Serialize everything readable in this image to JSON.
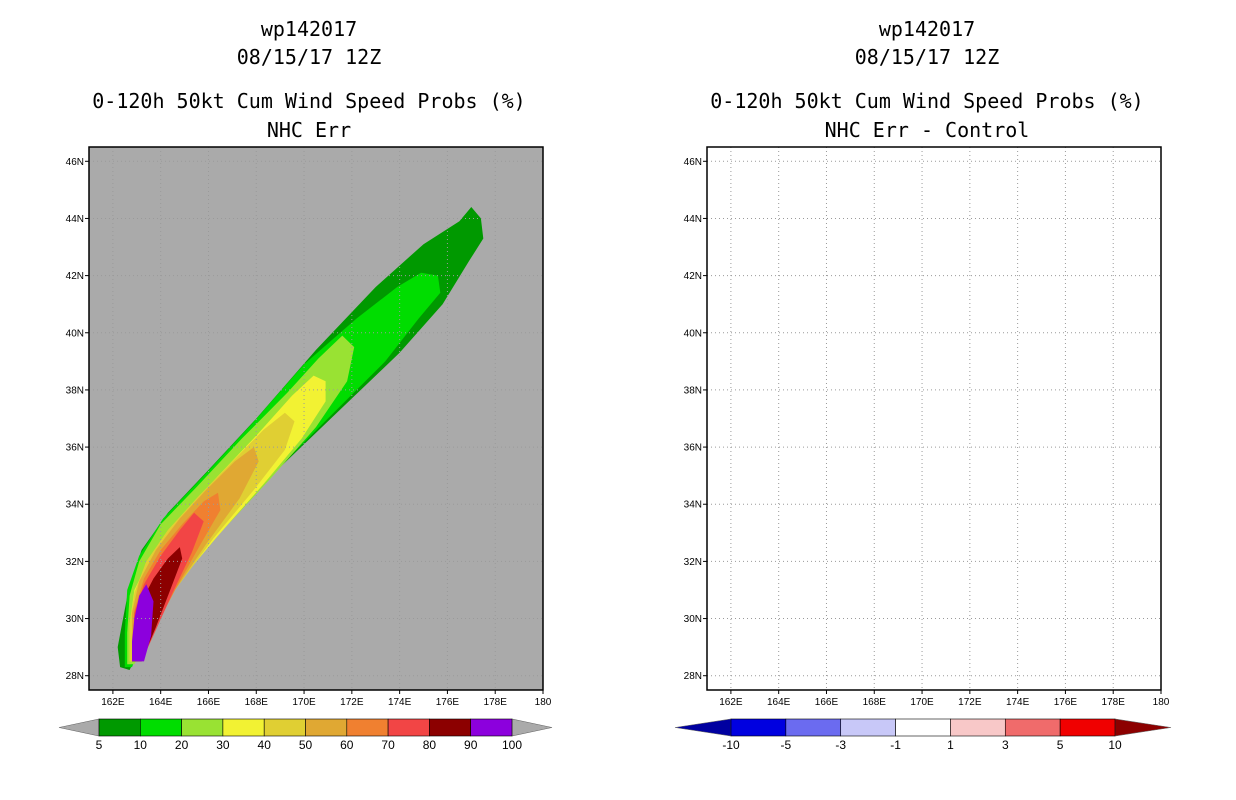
{
  "chart_data": [
    {
      "type": "heatmap",
      "title": "wp142017",
      "subtitle": "08/15/17 12Z",
      "product": "0-120h 50kt Cum Wind Speed Probs (%)",
      "panel_label": "NHC Err",
      "x_ticks": [
        "162E",
        "164E",
        "166E",
        "168E",
        "170E",
        "172E",
        "174E",
        "176E",
        "178E",
        "180"
      ],
      "y_ticks": [
        "28N",
        "30N",
        "32N",
        "34N",
        "36N",
        "38N",
        "40N",
        "42N",
        "44N",
        "46N"
      ],
      "xlim": [
        161,
        180
      ],
      "ylim": [
        27.5,
        46.5
      ],
      "grid": true,
      "background_color": "#aaaaaa",
      "levels": [
        "5",
        "10",
        "20",
        "30",
        "40",
        "50",
        "60",
        "70",
        "80",
        "90",
        "100"
      ],
      "level_values": [
        5,
        10,
        20,
        30,
        40,
        50,
        60,
        70,
        80,
        90,
        100
      ],
      "level_colors": [
        "#009900",
        "#00dd00",
        "#99e233",
        "#f2f233",
        "#e0cf33",
        "#e0a833",
        "#f08030",
        "#f24545",
        "#8c0000",
        "#8c00dd"
      ],
      "contours": [
        {
          "level": 5,
          "points": [
            [
              162.3,
              28.3
            ],
            [
              162.7,
              28.2
            ],
            [
              163.6,
              29.8
            ],
            [
              164.5,
              31.2
            ],
            [
              166.5,
              33.1
            ],
            [
              169.0,
              35.3
            ],
            [
              171.5,
              37.3
            ],
            [
              174.0,
              39.3
            ],
            [
              175.8,
              41.0
            ],
            [
              176.9,
              42.5
            ],
            [
              177.5,
              43.3
            ],
            [
              177.4,
              44.0
            ],
            [
              177.0,
              44.4
            ],
            [
              176.5,
              43.9
            ],
            [
              175.0,
              43.1
            ],
            [
              173.0,
              41.6
            ],
            [
              170.5,
              39.4
            ],
            [
              168.0,
              37.0
            ],
            [
              166.0,
              35.2
            ],
            [
              164.3,
              33.7
            ],
            [
              163.2,
              32.4
            ],
            [
              162.7,
              31.2
            ],
            [
              162.4,
              29.9
            ],
            [
              162.2,
              29.0
            ]
          ]
        },
        {
          "level": 10,
          "points": [
            [
              162.5,
              28.3
            ],
            [
              162.8,
              28.3
            ],
            [
              163.5,
              29.7
            ],
            [
              164.3,
              31.0
            ],
            [
              166.2,
              32.9
            ],
            [
              168.6,
              35.0
            ],
            [
              171.0,
              37.0
            ],
            [
              173.4,
              39.0
            ],
            [
              174.8,
              40.5
            ],
            [
              175.7,
              41.4
            ],
            [
              175.6,
              42.0
            ],
            [
              174.9,
              42.1
            ],
            [
              173.9,
              41.6
            ],
            [
              172.2,
              40.5
            ],
            [
              170.0,
              38.9
            ],
            [
              167.8,
              36.8
            ],
            [
              165.8,
              35.0
            ],
            [
              164.1,
              33.5
            ],
            [
              163.1,
              32.2
            ],
            [
              162.6,
              31.0
            ],
            [
              162.5,
              29.5
            ]
          ]
        },
        {
          "level": 20,
          "points": [
            [
              162.6,
              28.4
            ],
            [
              162.9,
              28.4
            ],
            [
              163.6,
              29.7
            ],
            [
              164.5,
              31.0
            ],
            [
              166.5,
              33.0
            ],
            [
              168.6,
              34.9
            ],
            [
              170.5,
              36.7
            ],
            [
              171.8,
              38.3
            ],
            [
              172.1,
              39.5
            ],
            [
              171.6,
              39.9
            ],
            [
              170.6,
              39.1
            ],
            [
              169.3,
              37.9
            ],
            [
              167.4,
              36.3
            ],
            [
              165.5,
              34.6
            ],
            [
              164.0,
              33.3
            ],
            [
              163.1,
              32.0
            ],
            [
              162.7,
              30.8
            ],
            [
              162.6,
              29.5
            ]
          ]
        },
        {
          "level": 30,
          "points": [
            [
              162.7,
              28.5
            ],
            [
              163.0,
              28.5
            ],
            [
              163.7,
              29.8
            ],
            [
              164.5,
              31.0
            ],
            [
              166.3,
              32.8
            ],
            [
              168.3,
              34.7
            ],
            [
              169.9,
              36.3
            ],
            [
              170.9,
              37.6
            ],
            [
              170.9,
              38.3
            ],
            [
              170.4,
              38.5
            ],
            [
              169.5,
              37.8
            ],
            [
              168.0,
              36.4
            ],
            [
              166.3,
              34.9
            ],
            [
              164.7,
              33.4
            ],
            [
              163.6,
              32.2
            ],
            [
              162.9,
              31.0
            ],
            [
              162.7,
              29.8
            ]
          ]
        },
        {
          "level": 40,
          "points": [
            [
              162.7,
              28.5
            ],
            [
              163.0,
              28.5
            ],
            [
              163.8,
              29.8
            ],
            [
              164.6,
              31.0
            ],
            [
              166.2,
              32.8
            ],
            [
              167.9,
              34.5
            ],
            [
              169.2,
              35.9
            ],
            [
              169.6,
              36.9
            ],
            [
              169.2,
              37.2
            ],
            [
              168.3,
              36.6
            ],
            [
              167.0,
              35.5
            ],
            [
              165.6,
              34.3
            ],
            [
              164.3,
              33.1
            ],
            [
              163.4,
              32.0
            ],
            [
              162.9,
              30.9
            ],
            [
              162.7,
              29.8
            ]
          ]
        },
        {
          "level": 50,
          "points": [
            [
              162.8,
              28.5
            ],
            [
              163.1,
              28.5
            ],
            [
              163.8,
              29.7
            ],
            [
              164.6,
              31.0
            ],
            [
              165.9,
              32.6
            ],
            [
              167.3,
              34.2
            ],
            [
              168.1,
              35.5
            ],
            [
              167.9,
              36.0
            ],
            [
              167.1,
              35.5
            ],
            [
              165.9,
              34.5
            ],
            [
              164.8,
              33.5
            ],
            [
              163.8,
              32.4
            ],
            [
              163.1,
              31.3
            ],
            [
              162.8,
              30.2
            ]
          ]
        },
        {
          "level": 60,
          "points": [
            [
              162.8,
              28.5
            ],
            [
              163.1,
              28.5
            ],
            [
              163.8,
              29.7
            ],
            [
              164.6,
              31.0
            ],
            [
              165.6,
              32.5
            ],
            [
              166.5,
              33.8
            ],
            [
              166.4,
              34.4
            ],
            [
              165.8,
              34.1
            ],
            [
              164.9,
              33.3
            ],
            [
              164.0,
              32.4
            ],
            [
              163.3,
              31.4
            ],
            [
              162.9,
              30.3
            ]
          ]
        },
        {
          "level": 70,
          "points": [
            [
              162.8,
              28.5
            ],
            [
              163.2,
              28.5
            ],
            [
              163.8,
              29.6
            ],
            [
              164.5,
              30.9
            ],
            [
              165.3,
              32.3
            ],
            [
              165.8,
              33.4
            ],
            [
              165.4,
              33.7
            ],
            [
              164.8,
              33.1
            ],
            [
              164.0,
              32.2
            ],
            [
              163.3,
              31.2
            ],
            [
              162.9,
              30.2
            ]
          ]
        },
        {
          "level": 80,
          "points": [
            [
              162.8,
              28.5
            ],
            [
              163.2,
              28.5
            ],
            [
              163.8,
              29.7
            ],
            [
              164.4,
              31.0
            ],
            [
              164.9,
              32.1
            ],
            [
              164.8,
              32.5
            ],
            [
              164.3,
              32.1
            ],
            [
              163.7,
              31.4
            ],
            [
              163.2,
              30.6
            ],
            [
              162.9,
              29.7
            ]
          ]
        },
        {
          "level": 90,
          "points": [
            [
              162.8,
              28.5
            ],
            [
              163.3,
              28.5
            ],
            [
              163.6,
              29.4
            ],
            [
              163.7,
              30.6
            ],
            [
              163.4,
              31.2
            ],
            [
              163.1,
              30.8
            ],
            [
              162.9,
              30.0
            ],
            [
              162.8,
              29.2
            ]
          ]
        }
      ]
    },
    {
      "type": "heatmap",
      "title": "wp142017",
      "subtitle": "08/15/17 12Z",
      "product": "0-120h 50kt Cum Wind Speed Probs (%)",
      "panel_label": "NHC Err - Control",
      "x_ticks": [
        "162E",
        "164E",
        "166E",
        "168E",
        "170E",
        "172E",
        "174E",
        "176E",
        "178E",
        "180"
      ],
      "y_ticks": [
        "28N",
        "30N",
        "32N",
        "34N",
        "36N",
        "38N",
        "40N",
        "42N",
        "44N",
        "46N"
      ],
      "xlim": [
        161,
        180
      ],
      "ylim": [
        27.5,
        46.5
      ],
      "grid": true,
      "background_color": "#ffffff",
      "levels": [
        "-10",
        "-5",
        "-3",
        "-1",
        "1",
        "3",
        "5",
        "10"
      ],
      "level_values": [
        -10,
        -5,
        -3,
        -1,
        1,
        3,
        5,
        10
      ],
      "level_colors": [
        "#0000e0",
        "#6b6bf0",
        "#c8c8f8",
        "#ffffff",
        "#f8c8c8",
        "#f06b6b",
        "#f00000"
      ],
      "end_colors": [
        "#0000a0",
        "#8c0000"
      ],
      "contours": []
    }
  ]
}
